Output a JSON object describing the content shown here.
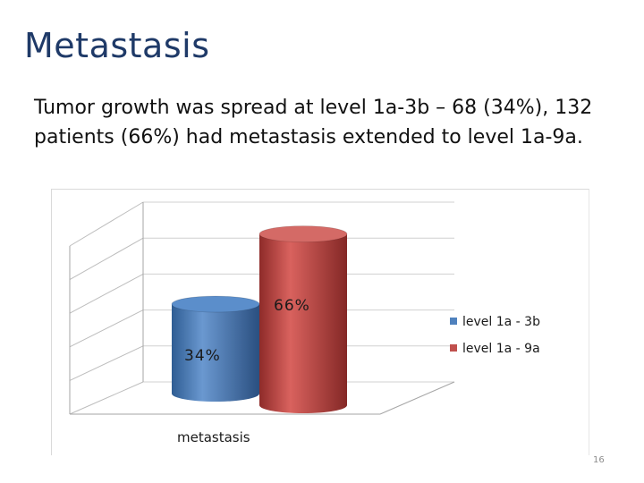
{
  "slide": {
    "title": "Metastasis",
    "body": "Tumor growth was spread  at  level  1a-3b – 68 (34%), 132 patients (66%) had  metastasis extended to level 1a-9a.",
    "page_number": "16"
  },
  "chart_data": {
    "type": "bar",
    "categories": [
      "metastasis"
    ],
    "series": [
      {
        "name": "level 1a - 3b",
        "values": [
          34
        ],
        "label": "34%",
        "color": "#4f81bd"
      },
      {
        "name": "level 1a - 9a",
        "values": [
          66
        ],
        "label": "66%",
        "color": "#c0504d"
      }
    ],
    "ylim": [
      0,
      100
    ],
    "grid": true,
    "legend": "right",
    "style": "3d-cylinder"
  }
}
